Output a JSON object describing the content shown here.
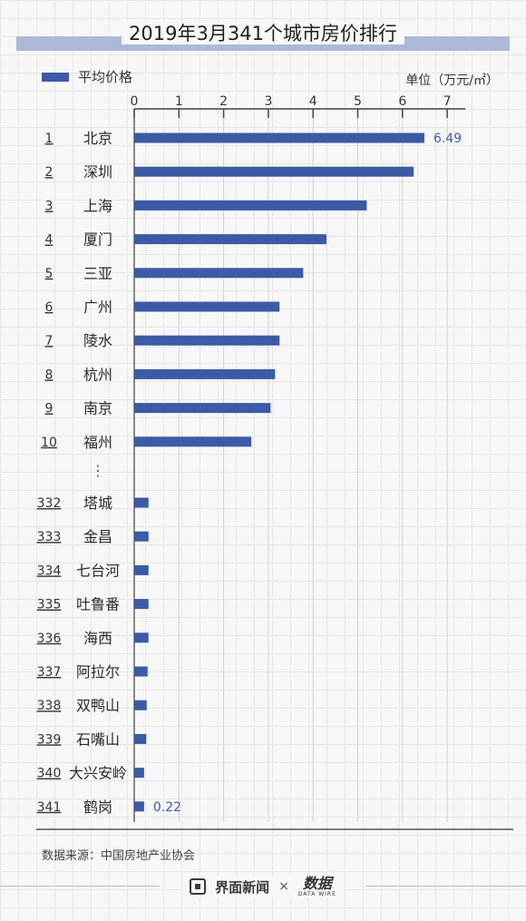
{
  "title": "2019年3月341个城市房价排行",
  "legend_label": "平均价格",
  "unit": "单位（万元/㎡）",
  "source": "数据来源：中国房地产业协会",
  "footer": {
    "brand": "界面新闻",
    "times": "×",
    "partner_cn": "数据",
    "partner_en": "DATA WIRE"
  },
  "colors": {
    "bar": "#3c5aa6",
    "value_label": "#3c5aa6"
  },
  "chart_data": {
    "type": "bar",
    "orientation": "horizontal",
    "title": "2019年3月341个城市房价排行",
    "xlim": [
      0,
      7
    ],
    "xticks": [
      0,
      1,
      2,
      3,
      4,
      5,
      6,
      7
    ],
    "grid": true,
    "legend": "top-left",
    "series": [
      {
        "name": "平均价格"
      }
    ],
    "top_rows": [
      {
        "rank": "1",
        "city": "北京",
        "value": 6.49,
        "label": "6.49"
      },
      {
        "rank": "2",
        "city": "深圳",
        "value": 6.25
      },
      {
        "rank": "3",
        "city": "上海",
        "value": 5.2
      },
      {
        "rank": "4",
        "city": "厦门",
        "value": 4.3
      },
      {
        "rank": "5",
        "city": "三亚",
        "value": 3.78
      },
      {
        "rank": "6",
        "city": "广州",
        "value": 3.25
      },
      {
        "rank": "7",
        "city": "陵水",
        "value": 3.25
      },
      {
        "rank": "8",
        "city": "杭州",
        "value": 3.15
      },
      {
        "rank": "9",
        "city": "南京",
        "value": 3.05
      },
      {
        "rank": "10",
        "city": "福州",
        "value": 2.62
      }
    ],
    "ellipsis": "⋮",
    "bottom_rows": [
      {
        "rank": "332",
        "city": "塔城",
        "value": 0.32
      },
      {
        "rank": "333",
        "city": "金昌",
        "value": 0.32
      },
      {
        "rank": "334",
        "city": "七台河",
        "value": 0.32
      },
      {
        "rank": "335",
        "city": "吐鲁番",
        "value": 0.32
      },
      {
        "rank": "336",
        "city": "海西",
        "value": 0.32
      },
      {
        "rank": "337",
        "city": "阿拉尔",
        "value": 0.3
      },
      {
        "rank": "338",
        "city": "双鸭山",
        "value": 0.28
      },
      {
        "rank": "339",
        "city": "石嘴山",
        "value": 0.27
      },
      {
        "rank": "340",
        "city": "大兴安岭",
        "value": 0.22
      },
      {
        "rank": "341",
        "city": "鹤岗",
        "value": 0.22,
        "label": "0.22"
      }
    ]
  }
}
